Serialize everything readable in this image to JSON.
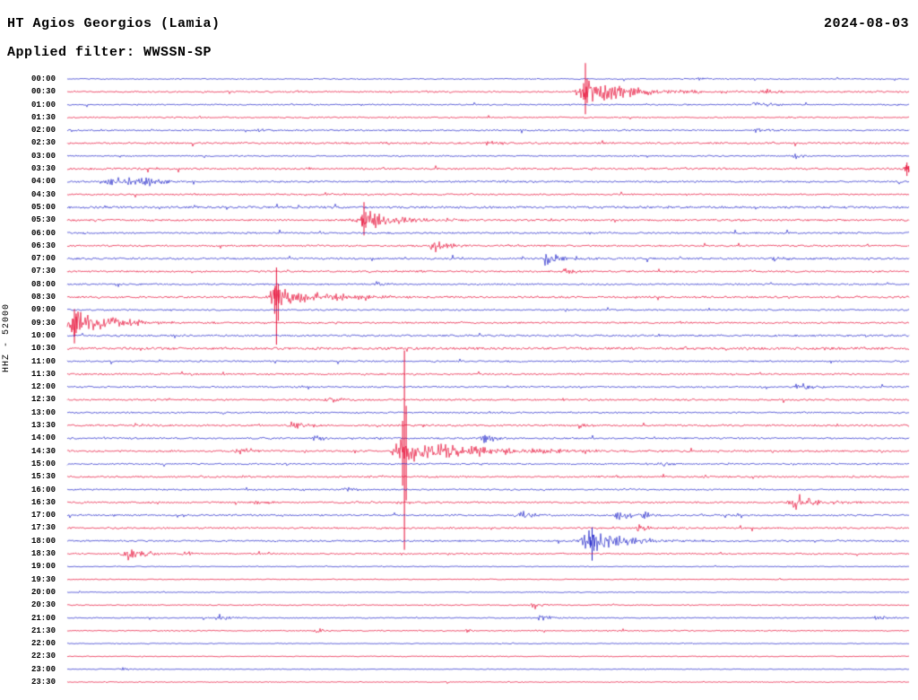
{
  "chart_data": {
    "type": "line",
    "title": "HT Agios Georgios (Lamia)",
    "date": "2024-08-03",
    "filter_label": "Applied filter: WWSSN-SP",
    "y_axis_label": "HHZ - 52000",
    "palette": {
      "red": "#e60a33",
      "blue": "#1e22c8",
      "text": "#000000",
      "background": "#ffffff"
    },
    "rows": [
      {
        "label": "00:00",
        "color": "blue",
        "noise": 0.6,
        "events": [
          {
            "p": 0.75,
            "a": 1.5,
            "w": 5
          }
        ]
      },
      {
        "label": "00:30",
        "color": "red",
        "noise": 0.8,
        "events": [
          {
            "p": 0.615,
            "a": 9,
            "w": 10,
            "su": 32,
            "sd": 25,
            "coda": 60
          },
          {
            "p": 0.83,
            "a": 2,
            "w": 8
          }
        ]
      },
      {
        "label": "01:00",
        "color": "blue",
        "noise": 0.7,
        "events": [
          {
            "p": 0.82,
            "a": 2.5,
            "w": 8
          }
        ]
      },
      {
        "label": "01:30",
        "color": "red",
        "noise": 0.7,
        "events": []
      },
      {
        "label": "02:00",
        "color": "blue",
        "noise": 0.8,
        "events": [
          {
            "p": 0.23,
            "a": 1.8,
            "w": 10
          },
          {
            "p": 0.82,
            "a": 2.2,
            "w": 6
          }
        ]
      },
      {
        "label": "02:30",
        "color": "red",
        "noise": 0.9,
        "events": [
          {
            "p": 0.5,
            "a": 1.5,
            "w": 8
          }
        ]
      },
      {
        "label": "03:00",
        "color": "blue",
        "noise": 0.7,
        "events": [
          {
            "p": 0.865,
            "a": 2.5,
            "w": 4
          }
        ]
      },
      {
        "label": "03:30",
        "color": "red",
        "noise": 1.0,
        "events": [
          {
            "p": 0.997,
            "a": 4,
            "w": 3,
            "su": 7,
            "sd": 8
          }
        ]
      },
      {
        "label": "04:00",
        "color": "blue",
        "noise": 0.9,
        "events": [
          {
            "p": 0.058,
            "a": 6,
            "w": 12
          },
          {
            "p": 0.095,
            "a": 4,
            "w": 8
          }
        ]
      },
      {
        "label": "04:30",
        "color": "red",
        "noise": 0.8,
        "events": []
      },
      {
        "label": "05:00",
        "color": "blue",
        "noise": 1.2,
        "events": []
      },
      {
        "label": "05:30",
        "color": "red",
        "noise": 1.0,
        "events": [
          {
            "p": 0.352,
            "a": 8,
            "w": 8,
            "su": 20,
            "sd": 17,
            "coda": 40
          }
        ]
      },
      {
        "label": "06:00",
        "color": "blue",
        "noise": 0.9,
        "events": []
      },
      {
        "label": "06:30",
        "color": "red",
        "noise": 0.9,
        "events": [
          {
            "p": 0.437,
            "a": 5,
            "w": 8
          }
        ]
      },
      {
        "label": "07:00",
        "color": "blue",
        "noise": 1.0,
        "events": [
          {
            "p": 0.57,
            "a": 6,
            "w": 8
          },
          {
            "p": 0.84,
            "a": 2.5,
            "w": 6
          }
        ]
      },
      {
        "label": "07:30",
        "color": "red",
        "noise": 0.9,
        "events": [
          {
            "p": 0.59,
            "a": 3,
            "w": 6
          }
        ]
      },
      {
        "label": "08:00",
        "color": "blue",
        "noise": 0.9,
        "events": [
          {
            "p": 0.368,
            "a": 2.5,
            "w": 6
          }
        ]
      },
      {
        "label": "08:30",
        "color": "red",
        "noise": 1.0,
        "events": [
          {
            "p": 0.248,
            "a": 9,
            "w": 10,
            "su": 33,
            "sd": 53,
            "coda": 50
          }
        ]
      },
      {
        "label": "09:00",
        "color": "blue",
        "noise": 0.8,
        "events": []
      },
      {
        "label": "09:30",
        "color": "red",
        "noise": 0.9,
        "events": [
          {
            "p": 0.008,
            "a": 10,
            "w": 10,
            "su": 15,
            "sd": 23,
            "coda": 45
          }
        ]
      },
      {
        "label": "10:00",
        "color": "blue",
        "noise": 1.0,
        "events": []
      },
      {
        "label": "10:30",
        "color": "red",
        "noise": 1.3,
        "events": []
      },
      {
        "label": "11:00",
        "color": "blue",
        "noise": 0.8,
        "events": []
      },
      {
        "label": "11:30",
        "color": "red",
        "noise": 0.9,
        "events": []
      },
      {
        "label": "12:00",
        "color": "blue",
        "noise": 0.8,
        "events": [
          {
            "p": 0.872,
            "a": 3.5,
            "w": 8
          }
        ]
      },
      {
        "label": "12:30",
        "color": "red",
        "noise": 0.9,
        "events": [
          {
            "p": 0.313,
            "a": 3,
            "w": 6
          }
        ]
      },
      {
        "label": "13:00",
        "color": "blue",
        "noise": 0.8,
        "events": []
      },
      {
        "label": "13:30",
        "color": "red",
        "noise": 1.0,
        "events": [
          {
            "p": 0.27,
            "a": 3.5,
            "w": 8
          },
          {
            "p": 0.61,
            "a": 2.5,
            "w": 6
          }
        ]
      },
      {
        "label": "14:00",
        "color": "blue",
        "noise": 0.9,
        "events": [
          {
            "p": 0.295,
            "a": 3,
            "w": 5
          },
          {
            "p": 0.497,
            "a": 4,
            "w": 6
          }
        ]
      },
      {
        "label": "14:30",
        "color": "red",
        "noise": 1.0,
        "events": [
          {
            "p": 0.4,
            "a": 10,
            "w": 14,
            "su": 112,
            "sd": 110,
            "coda": 80
          },
          {
            "p": 0.205,
            "a": 4,
            "w": 6
          }
        ]
      },
      {
        "label": "15:00",
        "color": "blue",
        "noise": 0.8,
        "events": [
          {
            "p": 0.708,
            "a": 3,
            "w": 6
          }
        ]
      },
      {
        "label": "15:30",
        "color": "red",
        "noise": 0.9,
        "events": []
      },
      {
        "label": "16:00",
        "color": "blue",
        "noise": 0.8,
        "events": [
          {
            "p": 0.33,
            "a": 2.5,
            "w": 5
          }
        ]
      },
      {
        "label": "16:30",
        "color": "red",
        "noise": 0.9,
        "events": [
          {
            "p": 0.868,
            "a": 6,
            "w": 12
          },
          {
            "p": 0.225,
            "a": 2.5,
            "w": 5
          }
        ]
      },
      {
        "label": "17:00",
        "color": "blue",
        "noise": 0.9,
        "events": [
          {
            "p": 0.54,
            "a": 4,
            "w": 7
          },
          {
            "p": 0.655,
            "a": 4.5,
            "w": 7
          },
          {
            "p": 0.685,
            "a": 3,
            "w": 5
          }
        ]
      },
      {
        "label": "17:30",
        "color": "red",
        "noise": 0.9,
        "events": [
          {
            "p": 0.68,
            "a": 3,
            "w": 5
          }
        ]
      },
      {
        "label": "18:00",
        "color": "blue",
        "noise": 0.9,
        "events": [
          {
            "p": 0.623,
            "a": 10,
            "w": 12,
            "su": 15,
            "sd": 22,
            "coda": 40
          }
        ]
      },
      {
        "label": "18:30",
        "color": "red",
        "noise": 0.8,
        "events": [
          {
            "p": 0.072,
            "a": 6,
            "w": 10
          },
          {
            "p": 0.14,
            "a": 2.5,
            "w": 5
          }
        ]
      },
      {
        "label": "19:00",
        "color": "blue",
        "noise": 0.45,
        "events": []
      },
      {
        "label": "19:30",
        "color": "red",
        "noise": 0.45,
        "events": []
      },
      {
        "label": "20:00",
        "color": "blue",
        "noise": 0.45,
        "events": []
      },
      {
        "label": "20:30",
        "color": "red",
        "noise": 0.6,
        "events": [
          {
            "p": 0.555,
            "a": 2,
            "w": 5
          }
        ]
      },
      {
        "label": "21:00",
        "color": "blue",
        "noise": 0.6,
        "events": [
          {
            "p": 0.182,
            "a": 3,
            "w": 6
          },
          {
            "p": 0.565,
            "a": 3,
            "w": 6
          },
          {
            "p": 0.963,
            "a": 2.5,
            "w": 6
          }
        ]
      },
      {
        "label": "21:30",
        "color": "red",
        "noise": 0.6,
        "events": [
          {
            "p": 0.298,
            "a": 2,
            "w": 5
          },
          {
            "p": 0.474,
            "a": 2.5,
            "w": 5
          }
        ]
      },
      {
        "label": "22:00",
        "color": "blue",
        "noise": 0.45,
        "events": []
      },
      {
        "label": "22:30",
        "color": "red",
        "noise": 0.45,
        "events": []
      },
      {
        "label": "23:00",
        "color": "blue",
        "noise": 0.45,
        "events": [
          {
            "p": 0.064,
            "a": 2,
            "w": 5
          }
        ]
      },
      {
        "label": "23:30",
        "color": "red",
        "noise": 0.45,
        "events": []
      }
    ]
  }
}
